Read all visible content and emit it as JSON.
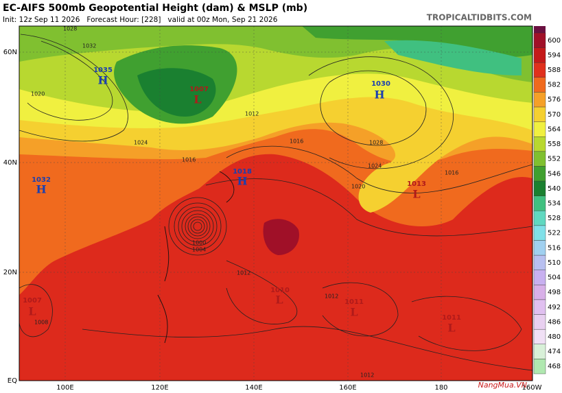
{
  "header": {
    "title": "EC-AIFS 500mb Geopotential Height (dam) & MSLP (mb)",
    "subtitle": "Init: 12z Sep 11 2026   Forecast Hour: [228]   valid at 00z Mon, Sep 21 2026",
    "site": "TROPICALTIDBITS.COM"
  },
  "axes": {
    "latitudes": [
      "60N",
      "40N",
      "20N",
      "EQ"
    ],
    "longitudes": [
      "100E",
      "120E",
      "140E",
      "160E",
      "180",
      "160W"
    ]
  },
  "colorbar": {
    "levels": [
      {
        "label": "600",
        "color": "#a01028"
      },
      {
        "label": "594",
        "color": "#c41a1a"
      },
      {
        "label": "588",
        "color": "#e0301c"
      },
      {
        "label": "582",
        "color": "#f06a1e"
      },
      {
        "label": "576",
        "color": "#f5a028"
      },
      {
        "label": "570",
        "color": "#f5d030"
      },
      {
        "label": "564",
        "color": "#f0f040"
      },
      {
        "label": "558",
        "color": "#b8d830"
      },
      {
        "label": "552",
        "color": "#80c030"
      },
      {
        "label": "546",
        "color": "#40a030"
      },
      {
        "label": "540",
        "color": "#1a8030"
      },
      {
        "label": "534",
        "color": "#40c080"
      },
      {
        "label": "528",
        "color": "#60d8c0"
      },
      {
        "label": "522",
        "color": "#80e0e8"
      },
      {
        "label": "516",
        "color": "#a0d0f0"
      },
      {
        "label": "510",
        "color": "#b8c0f0"
      },
      {
        "label": "504",
        "color": "#c8b0f0"
      },
      {
        "label": "498",
        "color": "#d8b0e8"
      },
      {
        "label": "492",
        "color": "#e0c0f0"
      },
      {
        "label": "486",
        "color": "#e8d0f0"
      },
      {
        "label": "480",
        "color": "#f0e0f5"
      },
      {
        "label": "474",
        "color": "#d8f0d8"
      },
      {
        "label": "468",
        "color": "#b0e8b0"
      }
    ]
  },
  "centers": [
    {
      "letter": "H",
      "value": "1035"
    },
    {
      "letter": "L",
      "value": "1007"
    },
    {
      "letter": "H",
      "value": "1018"
    },
    {
      "letter": "H",
      "value": "1030"
    },
    {
      "letter": "L",
      "value": "1013"
    },
    {
      "letter": "H",
      "value": "1032"
    },
    {
      "letter": "L",
      "value": "1010"
    },
    {
      "letter": "L",
      "value": "1011"
    },
    {
      "letter": "L",
      "value": "1011"
    },
    {
      "letter": "L",
      "value": "1007"
    }
  ],
  "isobar_labels": [
    "1028",
    "1032",
    "1020",
    "1024",
    "1016",
    "1012",
    "1000",
    "1004",
    "1016",
    "1024",
    "1028",
    "1020",
    "1016",
    "1012",
    "1012",
    "1008",
    "1012"
  ],
  "watermark": "NangMua.VN"
}
